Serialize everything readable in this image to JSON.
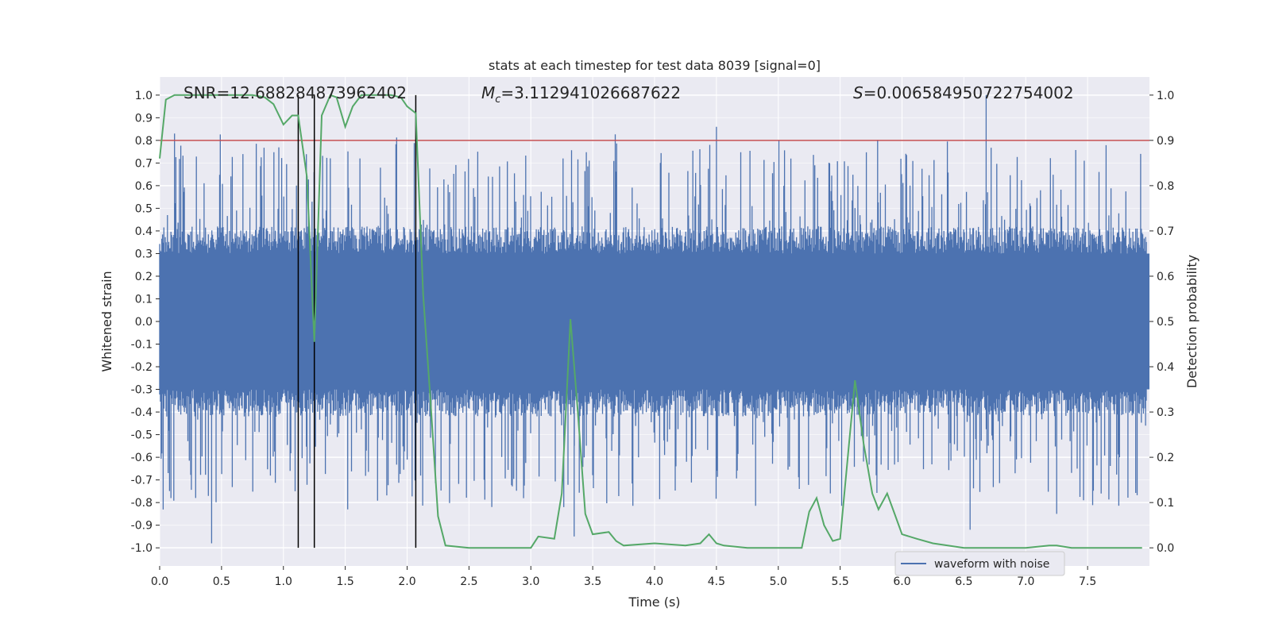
{
  "chart_data": {
    "type": "line",
    "title": "stats at each timestep for test data 8039 [signal=0]",
    "xlabel": "Time (s)",
    "ylabel": "Whitened strain",
    "ylabel_right": "Detection probability",
    "xlim": [
      0.0,
      8.0
    ],
    "ylim": [
      -1.08,
      1.08
    ],
    "ylim_right": [
      -0.04,
      1.04
    ],
    "x_ticks": [
      "0.0",
      "0.5",
      "1.0",
      "1.5",
      "2.0",
      "2.5",
      "3.0",
      "3.5",
      "4.0",
      "4.5",
      "5.0",
      "5.5",
      "6.0",
      "6.5",
      "7.0",
      "7.5"
    ],
    "y_ticks": [
      "1.0",
      "0.9",
      "0.8",
      "0.7",
      "0.6",
      "0.5",
      "0.4",
      "0.3",
      "0.2",
      "0.1",
      "0.0",
      "-0.1",
      "-0.2",
      "-0.3",
      "-0.4",
      "-0.5",
      "-0.6",
      "-0.7",
      "-0.8",
      "-0.9",
      "-1.0"
    ],
    "y_ticks_right": [
      "1.0",
      "0.9",
      "0.8",
      "0.7",
      "0.6",
      "0.5",
      "0.4",
      "0.3",
      "0.2",
      "0.1",
      "0.0"
    ],
    "annotations": {
      "snr": "SNR=12.688284873962402",
      "mc_symbol": "M",
      "mc_sub": "c",
      "mc_value": "=3.112941026687622",
      "s_symbol": "S",
      "s_value": "=0.006584950722754002"
    },
    "threshold": 0.8,
    "vertical_markers": [
      1.12,
      1.25,
      2.07
    ],
    "series": [
      {
        "name": "waveform with noise",
        "color": "#4c72b0",
        "axis": "left",
        "envelope_description": "dense noise filling about +-0.35, peaks to about +-1.0",
        "notable_peaks": [
          {
            "x": 0.12,
            "y": 0.83
          },
          {
            "x": 0.42,
            "y": -0.98
          },
          {
            "x": 1.52,
            "y": -0.83
          },
          {
            "x": 3.35,
            "y": -0.95
          },
          {
            "x": 4.5,
            "y": 0.86
          },
          {
            "x": 6.68,
            "y": 1.0
          },
          {
            "x": 6.55,
            "y": -0.92
          },
          {
            "x": 7.25,
            "y": -0.85
          }
        ]
      },
      {
        "name": "detection probability",
        "color": "#55a868",
        "axis": "right",
        "x": [
          0.0,
          0.05,
          0.12,
          0.25,
          0.5,
          0.75,
          0.85,
          0.92,
          1.0,
          1.07,
          1.12,
          1.19,
          1.25,
          1.31,
          1.38,
          1.43,
          1.5,
          1.56,
          1.63,
          1.75,
          1.87,
          1.95,
          2.0,
          2.07,
          2.13,
          2.19,
          2.25,
          2.31,
          2.5,
          2.75,
          3.0,
          3.06,
          3.19,
          3.25,
          3.32,
          3.38,
          3.44,
          3.5,
          3.63,
          3.69,
          3.75,
          4.0,
          4.25,
          4.37,
          4.44,
          4.5,
          4.56,
          4.75,
          5.0,
          5.19,
          5.25,
          5.31,
          5.37,
          5.44,
          5.5,
          5.62,
          5.69,
          5.76,
          5.81,
          5.88,
          5.94,
          6.0,
          6.12,
          6.25,
          6.5,
          6.75,
          7.0,
          7.19,
          7.25,
          7.37,
          7.5,
          7.75,
          7.94
        ],
        "values": [
          0.86,
          0.99,
          1.0,
          1.0,
          1.0,
          1.0,
          0.995,
          0.98,
          0.935,
          0.955,
          0.955,
          0.82,
          0.455,
          0.955,
          1.0,
          0.995,
          0.93,
          0.975,
          1.0,
          1.0,
          1.0,
          0.995,
          0.975,
          0.96,
          0.56,
          0.32,
          0.07,
          0.005,
          0.0,
          0.0,
          0.0,
          0.025,
          0.02,
          0.12,
          0.505,
          0.3,
          0.075,
          0.03,
          0.035,
          0.015,
          0.005,
          0.01,
          0.005,
          0.01,
          0.03,
          0.01,
          0.005,
          0.0,
          0.0,
          0.0,
          0.08,
          0.11,
          0.05,
          0.015,
          0.02,
          0.37,
          0.23,
          0.12,
          0.085,
          0.12,
          0.075,
          0.03,
          0.02,
          0.01,
          0.0,
          0.0,
          0.0,
          0.005,
          0.005,
          0.0,
          0.0,
          0.0,
          0.0
        ]
      }
    ],
    "threshold_color": "#c44e52",
    "legend_label": "waveform with noise",
    "legend_position": "lower-right"
  }
}
